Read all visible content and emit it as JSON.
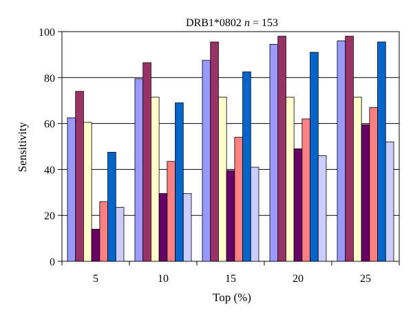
{
  "chart_data": {
    "type": "bar",
    "title": "DRB1*0802",
    "title_var": "n",
    "title_eq": " = 153",
    "xlabel": "Top (%)",
    "ylabel": "Sensitivity",
    "categories": [
      "5",
      "10",
      "15",
      "20",
      "25"
    ],
    "ylim": [
      0,
      100
    ],
    "yticks": [
      0,
      20,
      40,
      60,
      80,
      100
    ],
    "grid": true,
    "legend": "none",
    "series": [
      {
        "color": "#9999ff",
        "values": [
          62.5,
          79.5,
          87.5,
          94.5,
          96
        ]
      },
      {
        "color": "#993366",
        "values": [
          74,
          86.5,
          95.5,
          98,
          98
        ]
      },
      {
        "color": "#ffffcc",
        "values": [
          60.5,
          71.5,
          71.5,
          71.5,
          71.5
        ]
      },
      {
        "color": "#660066",
        "values": [
          14,
          29.5,
          39.5,
          49,
          59.5
        ]
      },
      {
        "color": "#ff8080",
        "values": [
          26,
          43.5,
          54,
          62,
          67
        ]
      },
      {
        "color": "#0066cc",
        "values": [
          47.5,
          69,
          82.5,
          91,
          95.5
        ]
      },
      {
        "color": "#ccccff",
        "values": [
          23.5,
          29.5,
          41,
          46,
          52
        ]
      }
    ]
  }
}
